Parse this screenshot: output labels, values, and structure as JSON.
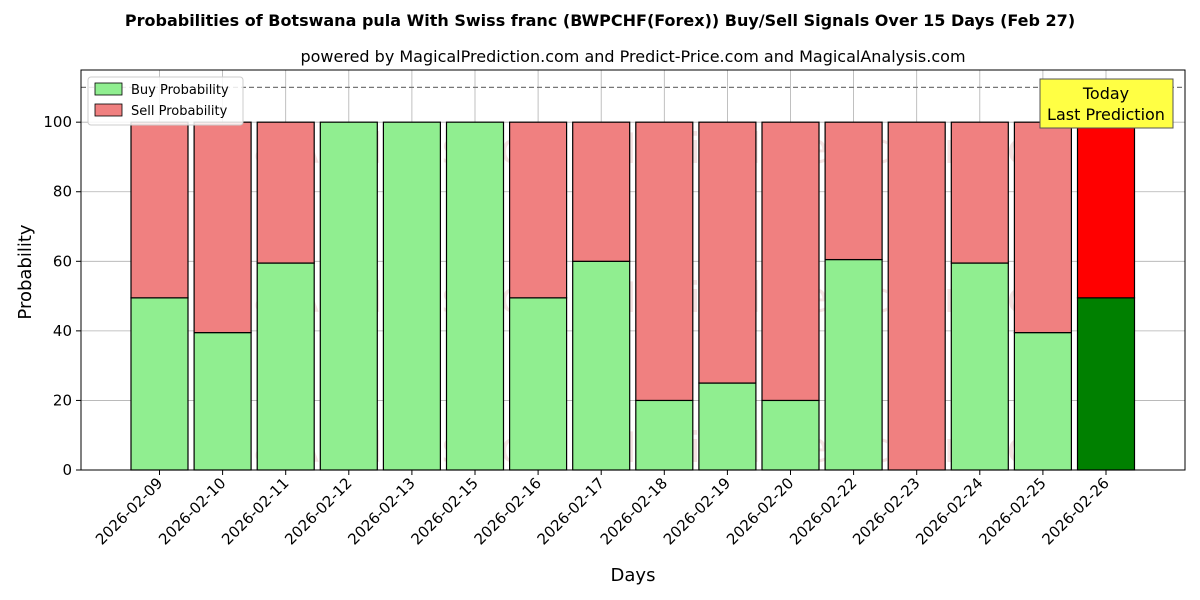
{
  "chart_data": {
    "type": "bar",
    "stacked": true,
    "title": "Probabilities of Botswana pula With Swiss franc (BWPCHF(Forex)) Buy/Sell Signals Over 15 Days (Feb 27)",
    "subtitle": "powered by MagicalPrediction.com and Predict-Price.com and MagicalAnalysis.com",
    "xlabel": "Days",
    "ylabel": "Probability",
    "ylim": [
      0,
      115
    ],
    "yticks": [
      0,
      20,
      40,
      60,
      80,
      100
    ],
    "grid": true,
    "legend_position": "top-left",
    "reference_line": 110,
    "categories": [
      "2026-02-09",
      "2026-02-10",
      "2026-02-11",
      "2026-02-12",
      "2026-02-13",
      "2026-02-15",
      "2026-02-16",
      "2026-02-17",
      "2026-02-18",
      "2026-02-19",
      "2026-02-20",
      "2026-02-22",
      "2026-02-23",
      "2026-02-24",
      "2026-02-25",
      "2026-02-26"
    ],
    "series": [
      {
        "name": "Buy Probability",
        "color": "#90ee90",
        "highlight_color": "#008000",
        "values": [
          49.5,
          39.5,
          59.5,
          100,
          100,
          100,
          49.5,
          60,
          20,
          25,
          20,
          60.5,
          0,
          59.5,
          39.5,
          49.5
        ]
      },
      {
        "name": "Sell Probability",
        "color": "#f08080",
        "highlight_color": "#ff0000",
        "values": [
          50.5,
          60.5,
          40.5,
          0,
          0,
          0,
          50.5,
          40,
          80,
          75,
          80,
          39.5,
          100,
          40.5,
          60.5,
          50.5
        ]
      }
    ],
    "highlight_index": 15,
    "annotation": {
      "lines": [
        "Today",
        "Last Prediction"
      ],
      "background": "#ffff44"
    },
    "watermarks": [
      "MagicalAnalysis.com",
      "MagicalPrediction.com"
    ]
  }
}
